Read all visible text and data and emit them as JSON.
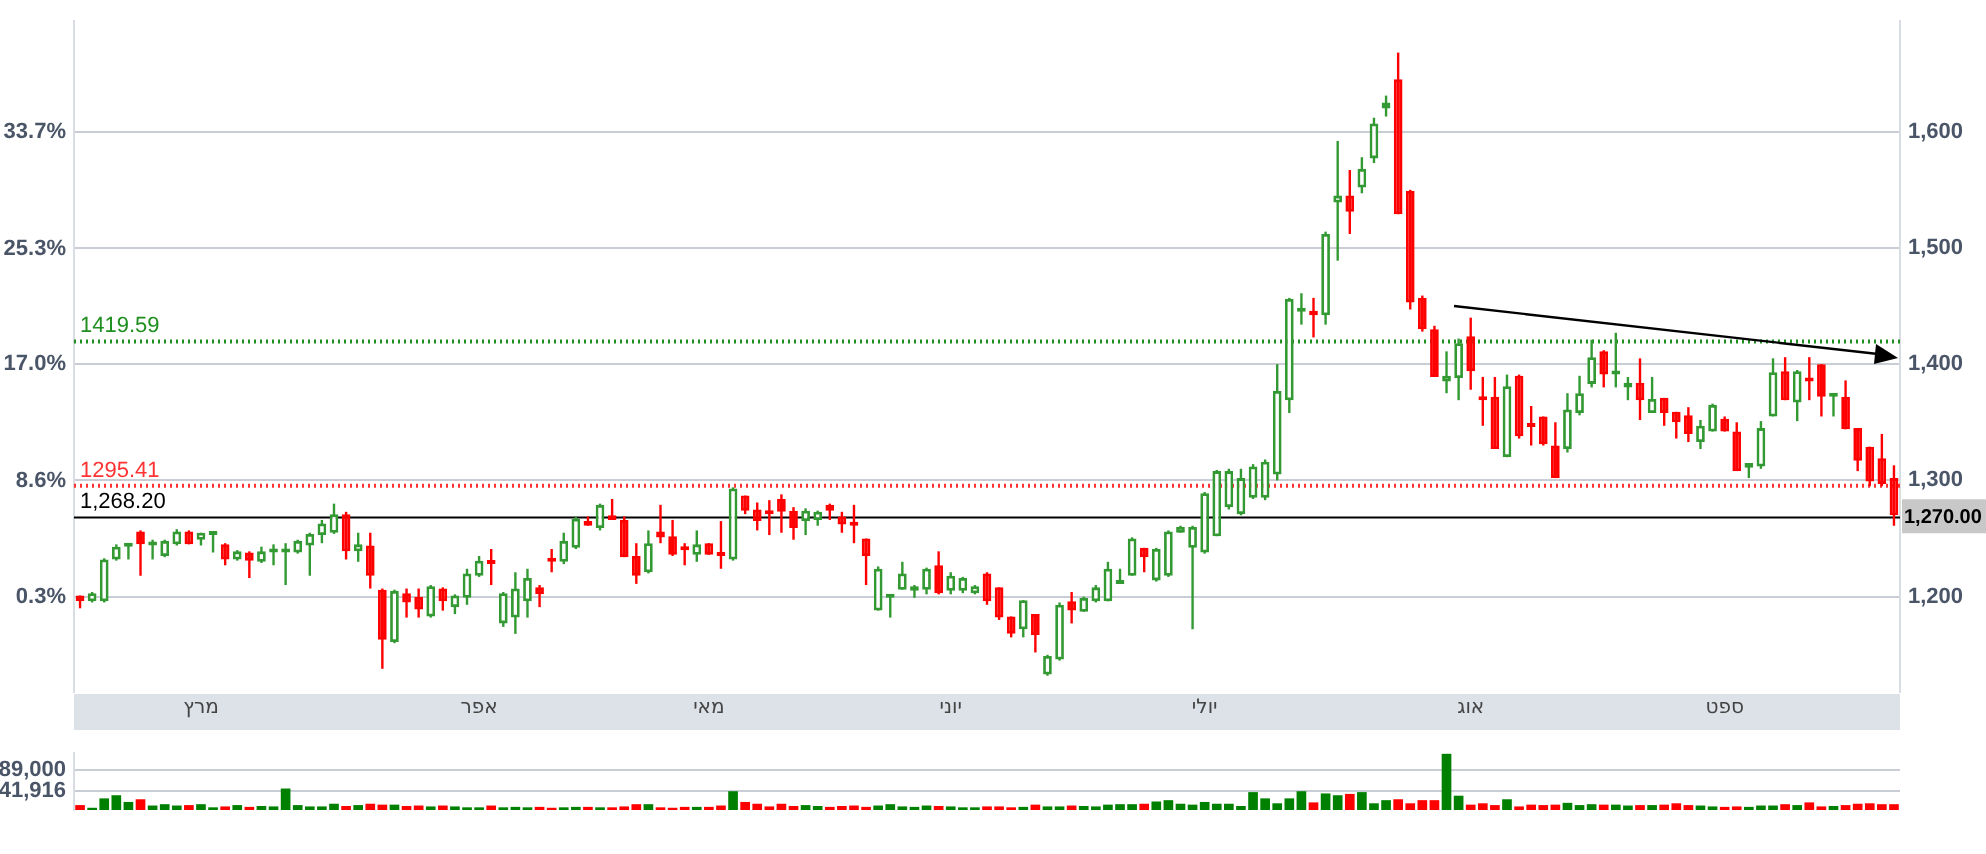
{
  "chart_data": [
    {
      "type": "candlestick",
      "categories": [
        null,
        null,
        null,
        null,
        null,
        null,
        null,
        null,
        null,
        null,
        "מרץ",
        null,
        null,
        null,
        null,
        null,
        null,
        null,
        null,
        null,
        null,
        null,
        null,
        null,
        null,
        null,
        null,
        null,
        null,
        null,
        null,
        null,
        null,
        "אפר",
        null,
        null,
        null,
        null,
        null,
        null,
        null,
        null,
        null,
        null,
        null,
        null,
        null,
        null,
        null,
        null,
        null,
        null,
        "מאי",
        null,
        null,
        null,
        null,
        null,
        null,
        null,
        null,
        null,
        null,
        null,
        null,
        null,
        null,
        null,
        null,
        null,
        null,
        null,
        "יוני",
        null,
        null,
        null,
        null,
        null,
        null,
        null,
        null,
        null,
        null,
        null,
        null,
        null,
        null,
        null,
        null,
        null,
        null,
        null,
        null,
        "יולי",
        null,
        null,
        null,
        null,
        null,
        null,
        null,
        null,
        null,
        null,
        null,
        null,
        null,
        null,
        null,
        null,
        null,
        null,
        null,
        null,
        null,
        "אוג",
        null,
        null,
        null,
        null,
        null,
        null,
        null,
        null,
        null,
        null,
        null,
        null,
        null,
        null,
        null,
        null,
        null,
        null,
        null,
        null,
        "ספט",
        null,
        null,
        null,
        null,
        null,
        null,
        null,
        null,
        null,
        null,
        null,
        null,
        null,
        null
      ],
      "ohlc": [
        [
          1201,
          1201,
          1190,
          1196
        ],
        [
          1196,
          1204,
          1195,
          1203
        ],
        [
          1196,
          1233,
          1195,
          1232
        ],
        [
          1232,
          1245,
          1231,
          1243
        ],
        [
          1243,
          1246,
          1232,
          1245
        ],
        [
          1256,
          1257,
          1218,
          1245
        ],
        [
          1244,
          1249,
          1232,
          1246
        ],
        [
          1235,
          1249,
          1234,
          1248
        ],
        [
          1245,
          1258,
          1244,
          1256
        ],
        [
          1256,
          1257,
          1245,
          1245
        ],
        [
          1249,
          1255,
          1244,
          1255
        ],
        [
          1253,
          1256,
          1238,
          1255
        ],
        [
          1245,
          1246,
          1227,
          1232
        ],
        [
          1232,
          1240,
          1231,
          1239
        ],
        [
          1238,
          1239,
          1216,
          1231
        ],
        [
          1230,
          1243,
          1229,
          1239
        ],
        [
          1238,
          1245,
          1227,
          1239
        ],
        [
          1238,
          1246,
          1210,
          1241
        ],
        [
          1238,
          1249,
          1237,
          1248
        ],
        [
          1244,
          1255,
          1218,
          1254
        ],
        [
          1253,
          1266,
          1246,
          1263
        ],
        [
          1255,
          1280,
          1254,
          1271
        ],
        [
          1271,
          1273,
          1232,
          1239
        ],
        [
          1239,
          1255,
          1230,
          1245
        ],
        [
          1244,
          1255,
          1207,
          1218
        ],
        [
          1206,
          1207,
          1138,
          1163
        ],
        [
          1161,
          1206,
          1160,
          1205
        ],
        [
          1203,
          1207,
          1182,
          1195
        ],
        [
          1200,
          1207,
          1182,
          1189
        ],
        [
          1183,
          1210,
          1182,
          1209
        ],
        [
          1207,
          1208,
          1188,
          1196
        ],
        [
          1191,
          1202,
          1185,
          1201
        ],
        [
          1199,
          1224,
          1193,
          1220
        ],
        [
          1218,
          1235,
          1217,
          1231
        ],
        [
          1230,
          1241,
          1210,
          1228
        ],
        [
          1177,
          1204,
          1174,
          1203
        ],
        [
          1182,
          1221,
          1168,
          1207
        ],
        [
          1196,
          1224,
          1182,
          1216
        ],
        [
          1208,
          1210,
          1191,
          1202
        ],
        [
          1232,
          1241,
          1221,
          1230
        ],
        [
          1230,
          1255,
          1228,
          1248
        ],
        [
          1242,
          1269,
          1241,
          1267
        ],
        [
          1265,
          1269,
          1261,
          1261
        ],
        [
          1259,
          1280,
          1257,
          1279
        ],
        [
          1270,
          1284,
          1266,
          1266
        ],
        [
          1266,
          1269,
          1234,
          1234
        ],
        [
          1235,
          1246,
          1211,
          1218
        ],
        [
          1221,
          1257,
          1220,
          1246
        ],
        [
          1256,
          1279,
          1246,
          1251
        ],
        [
          1252,
          1266,
          1235,
          1236
        ],
        [
          1241,
          1246,
          1227,
          1240
        ],
        [
          1236,
          1257,
          1230,
          1245
        ],
        [
          1246,
          1246,
          1236,
          1236
        ],
        [
          1236,
          1265,
          1224,
          1235
        ],
        [
          1232,
          1294,
          1231,
          1293
        ],
        [
          1287,
          1287,
          1271,
          1274
        ],
        [
          1275,
          1281,
          1257,
          1265
        ],
        [
          1273,
          1283,
          1253,
          1271
        ],
        [
          1284,
          1288,
          1255,
          1273
        ],
        [
          1274,
          1277,
          1249,
          1259
        ],
        [
          1265,
          1276,
          1253,
          1274
        ],
        [
          1266,
          1274,
          1261,
          1273
        ],
        [
          1279,
          1280,
          1266,
          1274
        ],
        [
          1269,
          1273,
          1255,
          1262
        ],
        [
          1263,
          1279,
          1246,
          1261
        ],
        [
          1250,
          1250,
          1210,
          1235
        ],
        [
          1188,
          1226,
          1188,
          1224
        ],
        [
          1199,
          1202,
          1182,
          1202
        ],
        [
          1206,
          1230,
          1206,
          1220
        ],
        [
          1205,
          1210,
          1199,
          1209
        ],
        [
          1206,
          1225,
          1202,
          1224
        ],
        [
          1227,
          1239,
          1202,
          1203
        ],
        [
          1205,
          1221,
          1202,
          1218
        ],
        [
          1205,
          1217,
          1203,
          1216
        ],
        [
          1203,
          1210,
          1202,
          1209
        ],
        [
          1220,
          1221,
          1193,
          1196
        ],
        [
          1208,
          1208,
          1180,
          1182
        ],
        [
          1183,
          1183,
          1165,
          1168
        ],
        [
          1172,
          1197,
          1165,
          1197
        ],
        [
          1185,
          1185,
          1152,
          1167
        ],
        [
          1133,
          1150,
          1132,
          1149
        ],
        [
          1146,
          1195,
          1145,
          1193
        ],
        [
          1196,
          1204,
          1177,
          1188
        ],
        [
          1187,
          1200,
          1187,
          1199
        ],
        [
          1196,
          1210,
          1195,
          1208
        ],
        [
          1196,
          1230,
          1196,
          1224
        ],
        [
          1211,
          1224,
          1211,
          1213
        ],
        [
          1218,
          1251,
          1218,
          1250
        ],
        [
          1242,
          1242,
          1221,
          1234
        ],
        [
          1214,
          1242,
          1213,
          1241
        ],
        [
          1218,
          1257,
          1217,
          1256
        ],
        [
          1255,
          1261,
          1255,
          1260
        ],
        [
          1242,
          1261,
          1172,
          1260
        ],
        [
          1238,
          1290,
          1237,
          1289
        ],
        [
          1252,
          1309,
          1252,
          1308
        ],
        [
          1277,
          1310,
          1275,
          1308
        ],
        [
          1271,
          1310,
          1270,
          1302
        ],
        [
          1285,
          1314,
          1284,
          1312
        ],
        [
          1285,
          1318,
          1283,
          1316
        ],
        [
          1305,
          1400,
          1300,
          1377
        ],
        [
          1369,
          1457,
          1358,
          1456
        ],
        [
          1445,
          1461,
          1434,
          1446
        ],
        [
          1446,
          1457,
          1423,
          1442
        ],
        [
          1442,
          1514,
          1434,
          1512
        ],
        [
          1539,
          1592,
          1489,
          1545
        ],
        [
          1545,
          1567,
          1512,
          1531
        ],
        [
          1552,
          1578,
          1547,
          1568
        ],
        [
          1577,
          1612,
          1573,
          1607
        ],
        [
          1620,
          1631,
          1613,
          1625
        ],
        [
          1645,
          1668,
          1529,
          1529
        ],
        [
          1549,
          1550,
          1447,
          1453
        ],
        [
          1457,
          1459,
          1428,
          1430
        ],
        [
          1430,
          1433,
          1389,
          1389
        ],
        [
          1385,
          1411,
          1375,
          1390
        ],
        [
          1388,
          1422,
          1369,
          1418
        ],
        [
          1424,
          1440,
          1378,
          1394
        ],
        [
          1371,
          1389,
          1347,
          1369
        ],
        [
          1372,
          1389,
          1327,
          1327
        ],
        [
          1320,
          1391,
          1320,
          1381
        ],
        [
          1390,
          1391,
          1336,
          1338
        ],
        [
          1348,
          1364,
          1330,
          1346
        ],
        [
          1355,
          1355,
          1330,
          1331
        ],
        [
          1330,
          1350,
          1302,
          1302
        ],
        [
          1327,
          1375,
          1324,
          1361
        ],
        [
          1358,
          1390,
          1356,
          1375
        ],
        [
          1383,
          1421,
          1380,
          1406
        ],
        [
          1411,
          1412,
          1380,
          1391
        ],
        [
          1391,
          1427,
          1380,
          1393
        ],
        [
          1380,
          1389,
          1369,
          1384
        ],
        [
          1384,
          1405,
          1352,
          1369
        ],
        [
          1358,
          1389,
          1358,
          1370
        ],
        [
          1371,
          1371,
          1347,
          1358
        ],
        [
          1359,
          1359,
          1336,
          1350
        ],
        [
          1356,
          1363,
          1333,
          1340
        ],
        [
          1333,
          1352,
          1327,
          1347
        ],
        [
          1342,
          1366,
          1342,
          1365
        ],
        [
          1353,
          1355,
          1342,
          1342
        ],
        [
          1342,
          1350,
          1308,
          1308
        ],
        [
          1311,
          1315,
          1302,
          1315
        ],
        [
          1312,
          1351,
          1310,
          1345
        ],
        [
          1355,
          1405,
          1355,
          1393
        ],
        [
          1394,
          1406,
          1369,
          1369
        ],
        [
          1367,
          1395,
          1351,
          1394
        ],
        [
          1386,
          1406,
          1369,
          1385
        ],
        [
          1400,
          1400,
          1355,
          1372
        ],
        [
          1372,
          1375,
          1355,
          1373
        ],
        [
          1372,
          1386,
          1344,
          1344
        ],
        [
          1345,
          1345,
          1308,
          1317
        ],
        [
          1329,
          1329,
          1295,
          1299
        ],
        [
          1319,
          1340,
          1295,
          1297
        ],
        [
          1302,
          1313,
          1261,
          1270
        ]
      ],
      "colors": [
        "#ff0000",
        "#339933",
        "#339933",
        "#339933",
        "#339933",
        "#ff0000",
        "#339933",
        "#339933",
        "#339933",
        "#ff0000",
        "#339933",
        "#339933",
        "#ff0000",
        "#339933",
        "#ff0000",
        "#339933",
        "#339933",
        "#339933",
        "#339933",
        "#339933",
        "#339933",
        "#339933",
        "#ff0000",
        "#339933",
        "#ff0000",
        "#ff0000",
        "#339933",
        "#ff0000",
        "#ff0000",
        "#339933",
        "#ff0000",
        "#339933",
        "#339933",
        "#339933",
        "#ff0000",
        "#339933",
        "#339933",
        "#339933",
        "#ff0000",
        "#ff0000",
        "#339933",
        "#339933",
        "#ff0000",
        "#339933",
        "#ff0000",
        "#ff0000",
        "#ff0000",
        "#339933",
        "#ff0000",
        "#ff0000",
        "#ff0000",
        "#339933",
        "#ff0000",
        "#ff0000",
        "#339933",
        "#ff0000",
        "#ff0000",
        "#ff0000",
        "#ff0000",
        "#ff0000",
        "#339933",
        "#339933",
        "#ff0000",
        "#ff0000",
        "#ff0000",
        "#ff0000",
        "#339933",
        "#339933",
        "#339933",
        "#339933",
        "#339933",
        "#ff0000",
        "#339933",
        "#339933",
        "#339933",
        "#ff0000",
        "#ff0000",
        "#ff0000",
        "#339933",
        "#ff0000",
        "#339933",
        "#339933",
        "#ff0000",
        "#339933",
        "#339933",
        "#339933",
        "#339933",
        "#339933",
        "#ff0000",
        "#339933",
        "#339933",
        "#339933",
        "#339933",
        "#339933",
        "#339933",
        "#339933",
        "#339933",
        "#339933",
        "#339933",
        "#339933",
        "#339933",
        "#339933",
        "#ff0000",
        "#339933",
        "#339933",
        "#ff0000",
        "#339933",
        "#339933",
        "#339933",
        "#ff0000",
        "#ff0000",
        "#ff0000",
        "#ff0000",
        "#339933",
        "#339933",
        "#ff0000",
        "#ff0000",
        "#ff0000",
        "#339933",
        "#ff0000",
        "#ff0000",
        "#ff0000",
        "#ff0000",
        "#339933",
        "#339933",
        "#339933",
        "#ff0000",
        "#339933",
        "#339933",
        "#ff0000",
        "#339933",
        "#ff0000",
        "#ff0000",
        "#ff0000",
        "#339933",
        "#339933",
        "#ff0000",
        "#ff0000",
        "#339933",
        "#339933",
        "#339933",
        "#ff0000",
        "#339933",
        "#ff0000",
        "#ff0000",
        "#339933",
        "#ff0000",
        "#ff0000",
        "#ff0000",
        "#ff0000",
        "#ff0000"
      ],
      "ylim": [
        1118,
        1695
      ],
      "yticks": [
        {
          "value": 1200,
          "label": "1,200"
        },
        {
          "value": 1300,
          "label": "1,300"
        },
        {
          "value": 1400,
          "label": "1,400"
        },
        {
          "value": 1500,
          "label": "1,500"
        },
        {
          "value": 1600,
          "label": "1,600"
        }
      ],
      "y2lim": [
        -6.55,
        41.67
      ],
      "y2ticks": [
        {
          "value": 0.3,
          "label": "0.3%"
        },
        {
          "value": 8.6,
          "label": "8.6%"
        },
        {
          "value": 17,
          "label": "17.0%"
        },
        {
          "value": 25.3,
          "label": "25.3%"
        },
        {
          "value": 33.7,
          "label": "33.7%"
        }
      ],
      "grid": "y",
      "ref_lines": [
        {
          "axis": "y",
          "value": 1419.59,
          "label": "1419.59",
          "color": "#1f8f1f",
          "line_style": "dotted"
        },
        {
          "axis": "y",
          "value": 1295.41,
          "label": "1295.41",
          "color": "#ff3333",
          "line_style": "dotted"
        },
        {
          "axis": "y",
          "value": 1268.2,
          "label": "1,268.20",
          "color": "#000000",
          "line_style": "solid"
        }
      ],
      "annotations": [
        "1,270.00"
      ]
    },
    {
      "type": "bar",
      "values": [
        11000,
        5000,
        26000,
        33000,
        18000,
        24000,
        10000,
        13000,
        10000,
        11000,
        13000,
        6000,
        8000,
        11000,
        7000,
        9000,
        8000,
        48000,
        11000,
        8000,
        8000,
        14000,
        9000,
        11000,
        14000,
        12000,
        12000,
        9000,
        10000,
        8000,
        10000,
        8000,
        6000,
        6000,
        10000,
        6000,
        7000,
        6000,
        7000,
        5000,
        6000,
        7000,
        7000,
        6000,
        6000,
        8000,
        13000,
        13000,
        6000,
        5000,
        7000,
        7000,
        7000,
        10000,
        42000,
        18000,
        14000,
        8000,
        14000,
        9000,
        11000,
        9000,
        7000,
        9000,
        10000,
        7000,
        10000,
        13000,
        8000,
        7000,
        10000,
        9000,
        8000,
        6000,
        6000,
        8000,
        8000,
        6000,
        7000,
        12000,
        8000,
        8000,
        10000,
        9000,
        8000,
        12000,
        13000,
        13000,
        14000,
        19000,
        22000,
        14000,
        12000,
        18000,
        14000,
        14000,
        9000,
        40000,
        26000,
        15000,
        26000,
        42000,
        17000,
        37000,
        33000,
        36000,
        40000,
        15000,
        22000,
        24000,
        15000,
        22000,
        22000,
        126000,
        32000,
        12000,
        15000,
        11000,
        24000,
        8000,
        12000,
        11000,
        12000,
        16000,
        11000,
        13000,
        12000,
        12000,
        10000,
        11000,
        11000,
        12000,
        15000,
        11000,
        10000,
        8000,
        7000,
        8000,
        7000,
        10000,
        10000,
        13000,
        11000,
        17000,
        8000,
        9000,
        11000,
        14000,
        15000,
        13000,
        13000
      ],
      "colors": [
        "#ff0000",
        "#008000",
        "#008000",
        "#008000",
        "#008000",
        "#ff0000",
        "#008000",
        "#008000",
        "#008000",
        "#ff0000",
        "#008000",
        "#008000",
        "#ff0000",
        "#008000",
        "#ff0000",
        "#008000",
        "#008000",
        "#008000",
        "#008000",
        "#008000",
        "#008000",
        "#008000",
        "#ff0000",
        "#008000",
        "#ff0000",
        "#ff0000",
        "#008000",
        "#ff0000",
        "#ff0000",
        "#008000",
        "#ff0000",
        "#008000",
        "#008000",
        "#008000",
        "#ff0000",
        "#008000",
        "#008000",
        "#008000",
        "#ff0000",
        "#ff0000",
        "#008000",
        "#008000",
        "#ff0000",
        "#008000",
        "#ff0000",
        "#ff0000",
        "#ff0000",
        "#008000",
        "#ff0000",
        "#ff0000",
        "#ff0000",
        "#008000",
        "#ff0000",
        "#ff0000",
        "#008000",
        "#ff0000",
        "#ff0000",
        "#ff0000",
        "#ff0000",
        "#ff0000",
        "#008000",
        "#008000",
        "#ff0000",
        "#ff0000",
        "#ff0000",
        "#ff0000",
        "#008000",
        "#008000",
        "#008000",
        "#008000",
        "#008000",
        "#ff0000",
        "#008000",
        "#008000",
        "#008000",
        "#ff0000",
        "#ff0000",
        "#ff0000",
        "#008000",
        "#ff0000",
        "#008000",
        "#008000",
        "#ff0000",
        "#008000",
        "#008000",
        "#008000",
        "#008000",
        "#008000",
        "#ff0000",
        "#008000",
        "#008000",
        "#008000",
        "#008000",
        "#008000",
        "#008000",
        "#008000",
        "#008000",
        "#008000",
        "#008000",
        "#008000",
        "#008000",
        "#008000",
        "#ff0000",
        "#008000",
        "#008000",
        "#ff0000",
        "#008000",
        "#008000",
        "#008000",
        "#ff0000",
        "#ff0000",
        "#ff0000",
        "#ff0000",
        "#008000",
        "#008000",
        "#ff0000",
        "#ff0000",
        "#ff0000",
        "#008000",
        "#ff0000",
        "#ff0000",
        "#ff0000",
        "#ff0000",
        "#008000",
        "#008000",
        "#008000",
        "#ff0000",
        "#008000",
        "#008000",
        "#ff0000",
        "#008000",
        "#ff0000",
        "#ff0000",
        "#ff0000",
        "#008000",
        "#008000",
        "#ff0000",
        "#ff0000",
        "#008000",
        "#008000",
        "#008000",
        "#ff0000",
        "#008000",
        "#ff0000",
        "#ff0000",
        "#008000",
        "#ff0000",
        "#ff0000",
        "#ff0000",
        "#ff0000",
        "#ff0000"
      ],
      "ylim": [
        0,
        127000
      ],
      "yticks": [
        {
          "value": 41916,
          "label": "41,916"
        },
        {
          "value": 89000,
          "label": "89,000"
        }
      ],
      "tick_labels": "y",
      "grid": "y"
    }
  ]
}
